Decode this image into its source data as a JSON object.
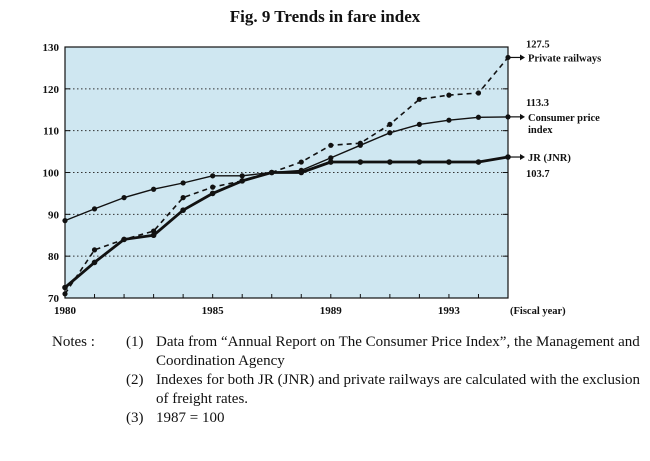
{
  "chart_data": {
    "type": "line",
    "title": "Fig. 9  Trends in fare index",
    "x_label": "(Fiscal year)",
    "x": [
      1980,
      1981,
      1982,
      1983,
      1984,
      1985,
      1986,
      1987,
      1988,
      1989,
      1990,
      1991,
      1992,
      1993,
      1994,
      1995
    ],
    "x_tick_labels": [
      "1980",
      "1985",
      "1989",
      "1993"
    ],
    "x_tick_values": [
      1980,
      1985,
      1989,
      1993
    ],
    "ylim": [
      70,
      130
    ],
    "y_ticks": [
      70,
      80,
      90,
      100,
      110,
      120,
      130
    ],
    "grid": "horizontal dotted",
    "background_color": "#cfe7f1",
    "series": [
      {
        "name": "Private railways",
        "style": "dashed",
        "color": "#111111",
        "end_label": "127.5",
        "values": [
          71,
          81.5,
          84,
          86,
          94,
          96.5,
          98,
          100,
          102.5,
          106.5,
          107,
          111.5,
          117.5,
          118.5,
          119,
          127.5
        ]
      },
      {
        "name": "Consumer price index",
        "name_lines": [
          "Consumer price",
          "index"
        ],
        "style": "solid-thin",
        "color": "#111111",
        "end_label": "113.3",
        "values": [
          88.5,
          91.3,
          94,
          96,
          97.5,
          99.2,
          99.2,
          100,
          100.5,
          103.5,
          106.5,
          109.5,
          111.5,
          112.5,
          113.2,
          113.3
        ]
      },
      {
        "name": "JR (JNR)",
        "style": "solid-thick",
        "color": "#111111",
        "end_label": "103.7",
        "values": [
          72.5,
          78.5,
          84,
          85,
          91,
          95,
          98,
          100,
          100,
          102.5,
          102.5,
          102.5,
          102.5,
          102.5,
          102.5,
          103.7
        ]
      }
    ]
  },
  "notes": {
    "prefix": "Notes :",
    "items": [
      {
        "num": "(1)",
        "text": "Data from “Annual Report on The Consumer Price Index”, the Management and Coordination Agency"
      },
      {
        "num": "(2)",
        "text": "Indexes for both JR (JNR) and private railways are calculated with the exclusion of freight rates."
      },
      {
        "num": "(3)",
        "text": "1987 = 100"
      }
    ]
  }
}
